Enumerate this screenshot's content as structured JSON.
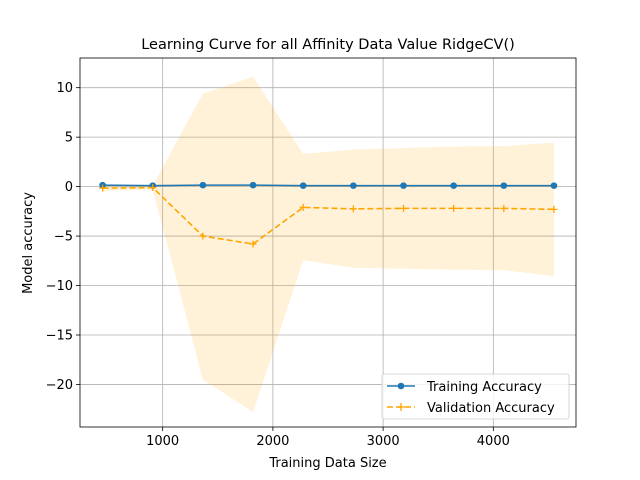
{
  "chart_data": {
    "type": "line",
    "title": "Learning Curve for all Affinity Data Value RidgeCV()",
    "xlabel": "Training Data Size",
    "ylabel": "Model accuracy",
    "xlim": [
      250,
      4750
    ],
    "ylim": [
      -24.3,
      13
    ],
    "xticks": [
      1000,
      2000,
      3000,
      4000
    ],
    "xtick_labels": [
      "1000",
      "2000",
      "3000",
      "4000"
    ],
    "yticks": [
      10,
      5,
      0,
      -5,
      -10,
      -15,
      -20
    ],
    "ytick_labels": [
      "10",
      "5",
      "0",
      "−5",
      "−10",
      "−15",
      "−20"
    ],
    "grid": true,
    "legend_position": "lower-right",
    "x": [
      455,
      910,
      1365,
      1820,
      2275,
      2730,
      3185,
      3640,
      4095,
      4550
    ],
    "series": [
      {
        "name": "Training Accuracy",
        "color": "#1f77b4",
        "marker": "circle",
        "line_style": "solid",
        "values": [
          0.15,
          0.1,
          0.15,
          0.15,
          0.1,
          0.1,
          0.1,
          0.1,
          0.1,
          0.1
        ]
      },
      {
        "name": "Validation Accuracy",
        "color": "#ffa500",
        "marker": "plus",
        "line_style": "dashed",
        "values": [
          -0.15,
          -0.1,
          -5.0,
          -5.8,
          -2.1,
          -2.25,
          -2.2,
          -2.2,
          -2.2,
          -2.3
        ],
        "band_upper": [
          0.15,
          0.1,
          9.4,
          11.1,
          3.3,
          3.75,
          3.9,
          4.05,
          4.1,
          4.45
        ],
        "band_lower": [
          -0.45,
          -0.3,
          -19.5,
          -22.8,
          -7.45,
          -8.2,
          -8.3,
          -8.4,
          -8.45,
          -9.05
        ],
        "band_color": "#ffa500"
      }
    ]
  }
}
